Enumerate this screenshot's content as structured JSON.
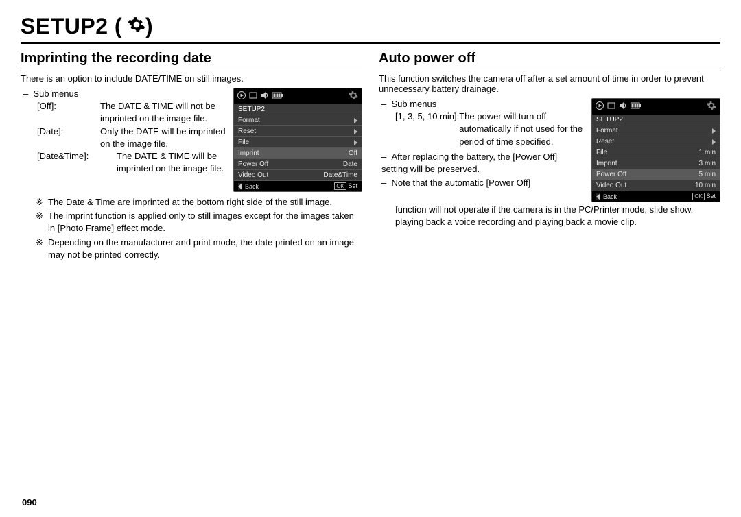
{
  "page_number": "090",
  "title": "SETUP2",
  "gear_icon_color": "#000000",
  "left": {
    "heading": "Imprinting the recording date",
    "intro": "There is an option to include DATE/TIME on still images.",
    "submenus_label": "Sub menus",
    "defs": [
      {
        "key": "[Off]:",
        "val": "The DATE & TIME will not be imprinted on the image file."
      },
      {
        "key": "[Date]:",
        "val": "Only the DATE will be imprinted on the image file."
      },
      {
        "key": "[Date&Time]:",
        "val": "The DATE & TIME will be imprinted on the image file."
      }
    ],
    "notes": [
      "The Date & Time are imprinted at the bottom right side of the still image.",
      "The imprint function is applied only to still images except for the images taken in [Photo Frame] effect mode.",
      "Depending on the manufacturer and print mode, the date printed on an image may not be printed correctly."
    ],
    "cam": {
      "title": "SETUP2",
      "rows": [
        {
          "l": "Format",
          "r": "",
          "arrow": true,
          "hi": false
        },
        {
          "l": "Reset",
          "r": "",
          "arrow": true,
          "hi": false
        },
        {
          "l": "File",
          "r": "",
          "arrow": true,
          "hi": false
        },
        {
          "l": "Imprint",
          "r": "Off",
          "arrow": false,
          "hi": true
        },
        {
          "l": "Power Off",
          "r": "Date",
          "arrow": false,
          "hi": false
        },
        {
          "l": "Video Out",
          "r": "Date&Time",
          "arrow": false,
          "hi": false
        }
      ],
      "foot_back": "Back",
      "foot_ok": "OK",
      "foot_set": "Set"
    }
  },
  "right": {
    "heading": "Auto power off",
    "intro": "This function switches the camera off after a set amount of time in order to prevent unnecessary battery drainage.",
    "submenus_label": "Sub menus",
    "def_key": "[1, 3, 5, 10 min]:",
    "def_val": "The power will turn off automatically if not used for the period of time specified.",
    "bullets": [
      "After replacing the battery, the [Power Off] setting will be preserved.",
      "Note that the automatic [Power Off] function will not operate if the camera is in the PC/Printer mode, slide show, playing back a voice recording and playing back a movie clip."
    ],
    "cam": {
      "title": "SETUP2",
      "rows": [
        {
          "l": "Format",
          "r": "",
          "arrow": true,
          "hi": false
        },
        {
          "l": "Reset",
          "r": "",
          "arrow": true,
          "hi": false
        },
        {
          "l": "File",
          "r": "1  min",
          "arrow": false,
          "hi": false
        },
        {
          "l": "Imprint",
          "r": "3  min",
          "arrow": false,
          "hi": false
        },
        {
          "l": "Power Off",
          "r": "5  min",
          "arrow": false,
          "hi": true
        },
        {
          "l": "Video Out",
          "r": "10  min",
          "arrow": false,
          "hi": false
        }
      ],
      "foot_back": "Back",
      "foot_ok": "OK",
      "foot_set": "Set"
    }
  },
  "note_marker": "※",
  "dash_marker": "–",
  "colors": {
    "page_bg": "#ffffff",
    "text": "#000000",
    "cam_bg": "#000000",
    "cam_row_bg": "#3a3a3a",
    "cam_hi_bg": "#5a5a5a",
    "cam_text": "#e5e5e5",
    "cam_border": "#555555"
  }
}
